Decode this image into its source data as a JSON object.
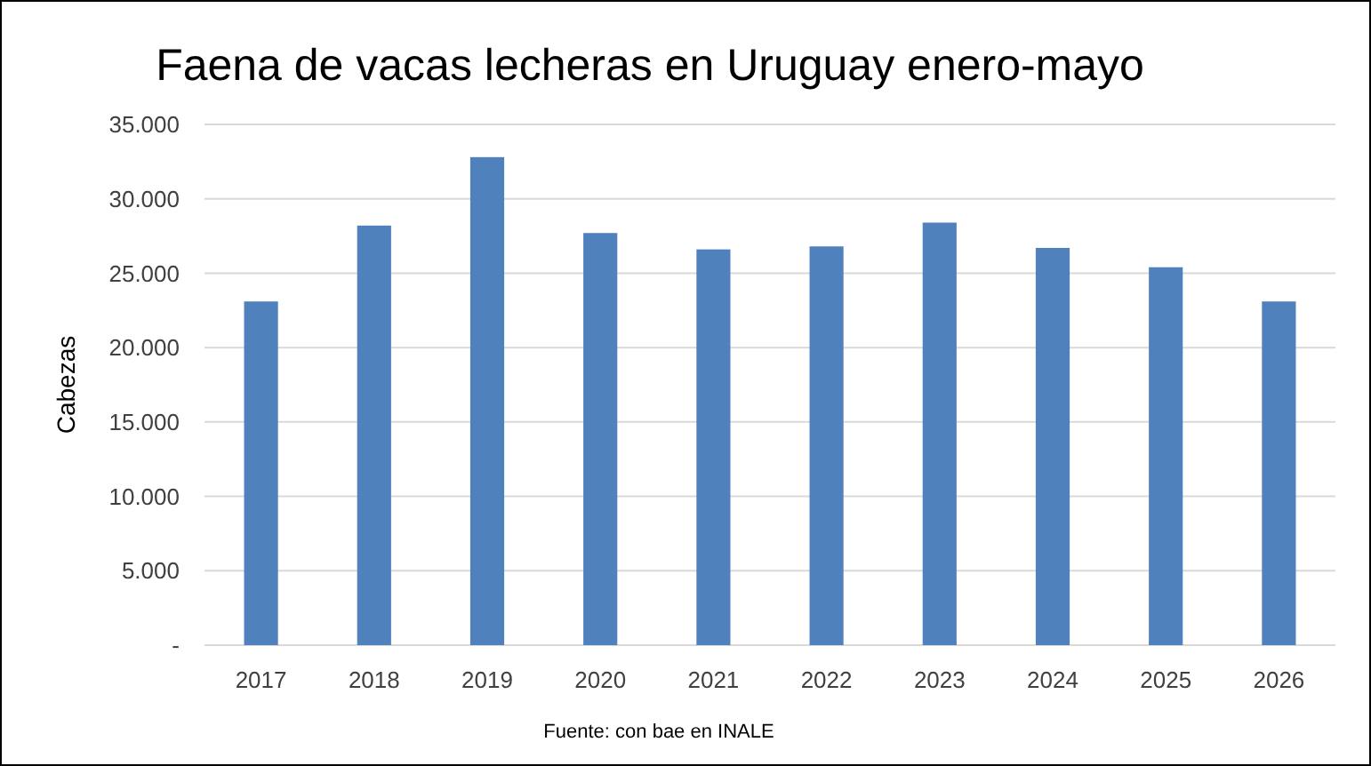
{
  "chart_data": {
    "type": "bar",
    "title": "Faena de vacas lecheras en Uruguay enero-mayo",
    "ylabel": "Cabezas",
    "categories": [
      "2017",
      "2018",
      "2019",
      "2020",
      "2021",
      "2022",
      "2023",
      "2024",
      "2025",
      "2026"
    ],
    "values": [
      23100,
      28200,
      32800,
      27700,
      26600,
      26800,
      28400,
      26700,
      25400,
      23100
    ],
    "color": "#4f81bd",
    "ylim": [
      0,
      35000
    ],
    "yticks": [
      {
        "value": 0,
        "label": "-"
      },
      {
        "value": 5000,
        "label": "5.000"
      },
      {
        "value": 10000,
        "label": "10.000"
      },
      {
        "value": 15000,
        "label": "15.000"
      },
      {
        "value": 20000,
        "label": "20.000"
      },
      {
        "value": 25000,
        "label": "25.000"
      },
      {
        "value": 30000,
        "label": "30.000"
      },
      {
        "value": 35000,
        "label": "35.000"
      }
    ],
    "grid": "y",
    "annotations": [
      "Fuente: con bae en INALE"
    ]
  }
}
